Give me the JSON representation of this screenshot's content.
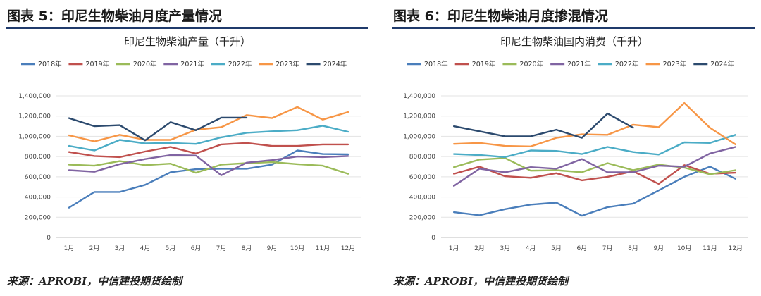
{
  "figures": [
    {
      "fig_title": "图表 5：印尼生物柴油月度产量情况",
      "source": "来源：APROBI，中信建投期货绘制"
    },
    {
      "fig_title": "图表 6：印尼生物柴油月度掺混情况",
      "source": "来源：APROBI，中信建投期货绘制"
    }
  ],
  "chart_data": [
    {
      "type": "line",
      "title": "印尼生物柴油产量（千升）",
      "xlabel": "",
      "ylabel": "",
      "categories": [
        "1月",
        "2月",
        "3月",
        "4月",
        "5月",
        "6月",
        "7月",
        "8月",
        "9月",
        "10月",
        "11月",
        "12月"
      ],
      "ylim": [
        0,
        1400000
      ],
      "yticks": [
        0,
        200000,
        400000,
        600000,
        800000,
        1000000,
        1200000,
        1400000
      ],
      "ytick_labels": [
        "0",
        "200,000",
        "400,000",
        "600,000",
        "800,000",
        "1,000,000",
        "1,200,000",
        "1,400,000"
      ],
      "grid": true,
      "legend": "top",
      "series": [
        {
          "name": "2018年",
          "color": "#4a7ebb",
          "values": [
            295000,
            450000,
            450000,
            520000,
            645000,
            675000,
            680000,
            680000,
            720000,
            860000,
            825000,
            822000
          ]
        },
        {
          "name": "2019年",
          "color": "#c0504d",
          "values": [
            845000,
            805000,
            795000,
            850000,
            895000,
            830000,
            920000,
            935000,
            905000,
            905000,
            920000,
            920000
          ]
        },
        {
          "name": "2020年",
          "color": "#9bbb59",
          "values": [
            720000,
            710000,
            755000,
            715000,
            730000,
            640000,
            720000,
            735000,
            745000,
            725000,
            710000,
            630000
          ]
        },
        {
          "name": "2021年",
          "color": "#8064a2",
          "values": [
            665000,
            650000,
            725000,
            775000,
            815000,
            810000,
            615000,
            740000,
            765000,
            800000,
            795000,
            805000
          ]
        },
        {
          "name": "2022年",
          "color": "#4bacc6",
          "values": [
            905000,
            860000,
            965000,
            930000,
            935000,
            925000,
            990000,
            1035000,
            1050000,
            1060000,
            1105000,
            1045000
          ]
        },
        {
          "name": "2023年",
          "color": "#f79646",
          "values": [
            1010000,
            950000,
            1015000,
            965000,
            965000,
            1065000,
            1090000,
            1210000,
            1180000,
            1290000,
            1165000,
            1240000
          ]
        },
        {
          "name": "2024年",
          "color": "#2c4a6e",
          "values": [
            1180000,
            1100000,
            1110000,
            960000,
            1140000,
            1060000,
            1185000,
            1185000,
            null,
            null,
            null,
            null
          ]
        }
      ]
    },
    {
      "type": "line",
      "title": "印尼生物柴油国内消费（千升）",
      "xlabel": "",
      "ylabel": "",
      "categories": [
        "1月",
        "2月",
        "3月",
        "4月",
        "5月",
        "6月",
        "7月",
        "8月",
        "9月",
        "10月",
        "11月",
        "12月"
      ],
      "ylim": [
        0,
        1400000
      ],
      "yticks": [
        0,
        200000,
        400000,
        600000,
        800000,
        1000000,
        1200000,
        1400000
      ],
      "ytick_labels": [
        "0",
        "200,000",
        "400,000",
        "600,000",
        "800,000",
        "1,000,000",
        "1,200,000",
        "1,400,000"
      ],
      "grid": true,
      "legend": "top",
      "series": [
        {
          "name": "2018年",
          "color": "#4a7ebb",
          "values": [
            250000,
            220000,
            280000,
            325000,
            345000,
            215000,
            300000,
            335000,
            465000,
            600000,
            700000,
            580000
          ]
        },
        {
          "name": "2019年",
          "color": "#c0504d",
          "values": [
            630000,
            700000,
            605000,
            590000,
            635000,
            565000,
            600000,
            655000,
            530000,
            715000,
            630000,
            640000
          ]
        },
        {
          "name": "2020年",
          "color": "#9bbb59",
          "values": [
            695000,
            770000,
            785000,
            660000,
            665000,
            645000,
            735000,
            665000,
            720000,
            690000,
            625000,
            665000
          ]
        },
        {
          "name": "2021年",
          "color": "#8064a2",
          "values": [
            510000,
            680000,
            645000,
            695000,
            680000,
            775000,
            645000,
            645000,
            710000,
            700000,
            830000,
            895000
          ]
        },
        {
          "name": "2022年",
          "color": "#4bacc6",
          "values": [
            825000,
            815000,
            795000,
            860000,
            855000,
            825000,
            895000,
            845000,
            820000,
            940000,
            935000,
            1015000
          ]
        },
        {
          "name": "2023年",
          "color": "#f79646",
          "values": [
            925000,
            935000,
            905000,
            900000,
            985000,
            1020000,
            1015000,
            1115000,
            1090000,
            1330000,
            1085000,
            920000
          ]
        },
        {
          "name": "2024年",
          "color": "#2c4a6e",
          "values": [
            1100000,
            1050000,
            1000000,
            1000000,
            1065000,
            985000,
            1225000,
            1085000,
            null,
            null,
            null,
            null
          ]
        }
      ]
    }
  ]
}
